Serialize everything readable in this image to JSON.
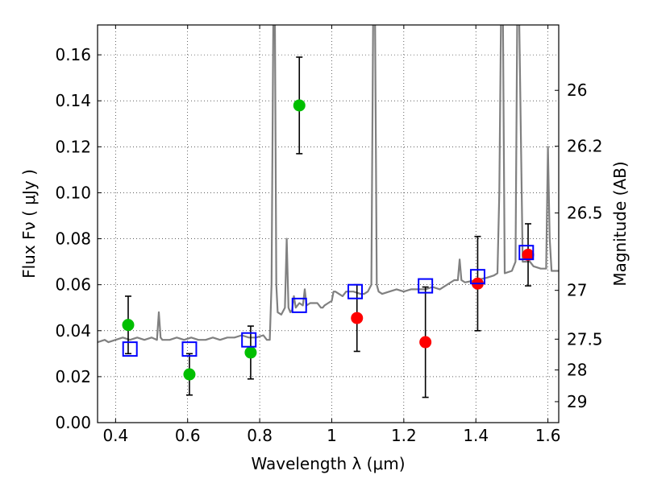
{
  "chart_data": {
    "type": "scatter",
    "xlabel": "Wavelength  λ (μm)",
    "ylabel": "Flux  Fν  ( μJy )",
    "ylabel_right": "Magnitude (AB)",
    "xlim": [
      0.35,
      1.63
    ],
    "ylim": [
      0.0,
      0.173
    ],
    "grid": true,
    "x_ticks": [
      0.4,
      0.6,
      0.8,
      1.0,
      1.2,
      1.4,
      1.6
    ],
    "x_tick_labels": [
      "0.4",
      "0.6",
      "0.8",
      "1",
      "1.2",
      "1.4",
      "1.6"
    ],
    "y_ticks": [
      0.0,
      0.02,
      0.04,
      0.06,
      0.08,
      0.1,
      0.12,
      0.14,
      0.16
    ],
    "y_tick_labels": [
      "0.00",
      "0.02",
      "0.04",
      "0.06",
      "0.08",
      "0.10",
      "0.12",
      "0.14",
      "0.16"
    ],
    "right_ticks": [
      {
        "label": "26",
        "mag": 26.0
      },
      {
        "label": "26.2",
        "mag": 26.2
      },
      {
        "label": "26.5",
        "mag": 26.5
      },
      {
        "label": "27",
        "mag": 27.0
      },
      {
        "label": "27.5",
        "mag": 27.5
      },
      {
        "label": "28",
        "mag": 28.0
      },
      {
        "label": "29",
        "mag": 29.0
      }
    ],
    "series": [
      {
        "kind": "line",
        "color": "#808080",
        "x": [
          0.35,
          0.37,
          0.38,
          0.4,
          0.42,
          0.44,
          0.46,
          0.48,
          0.5,
          0.515,
          0.52,
          0.525,
          0.53,
          0.55,
          0.57,
          0.59,
          0.61,
          0.63,
          0.65,
          0.67,
          0.69,
          0.71,
          0.73,
          0.75,
          0.77,
          0.79,
          0.81,
          0.82,
          0.828,
          0.833,
          0.838,
          0.842,
          0.846,
          0.85,
          0.86,
          0.87,
          0.875,
          0.88,
          0.885,
          0.89,
          0.895,
          0.9,
          0.91,
          0.92,
          0.925,
          0.93,
          0.94,
          0.96,
          0.97,
          0.975,
          0.98,
          0.99,
          1.0,
          1.005,
          1.01,
          1.02,
          1.03,
          1.04,
          1.06,
          1.08,
          1.09,
          1.1,
          1.11,
          1.115,
          1.12,
          1.125,
          1.13,
          1.14,
          1.16,
          1.18,
          1.2,
          1.22,
          1.24,
          1.26,
          1.28,
          1.3,
          1.32,
          1.34,
          1.35,
          1.355,
          1.36,
          1.37,
          1.4,
          1.43,
          1.45,
          1.46,
          1.465,
          1.47,
          1.475,
          1.48,
          1.5,
          1.51,
          1.515,
          1.52,
          1.53,
          1.55,
          1.56,
          1.58,
          1.595,
          1.6,
          1.605,
          1.61,
          1.615,
          1.63
        ],
        "y": [
          0.035,
          0.036,
          0.035,
          0.036,
          0.037,
          0.036,
          0.037,
          0.036,
          0.037,
          0.036,
          0.048,
          0.037,
          0.036,
          0.036,
          0.037,
          0.036,
          0.037,
          0.036,
          0.036,
          0.037,
          0.036,
          0.037,
          0.037,
          0.038,
          0.037,
          0.037,
          0.038,
          0.036,
          0.036,
          0.06,
          0.18,
          0.18,
          0.06,
          0.048,
          0.047,
          0.05,
          0.08,
          0.05,
          0.048,
          0.049,
          0.055,
          0.05,
          0.052,
          0.051,
          0.058,
          0.051,
          0.052,
          0.052,
          0.05,
          0.05,
          0.051,
          0.052,
          0.053,
          0.057,
          0.057,
          0.056,
          0.055,
          0.057,
          0.057,
          0.056,
          0.056,
          0.057,
          0.06,
          0.18,
          0.18,
          0.06,
          0.057,
          0.056,
          0.057,
          0.058,
          0.057,
          0.058,
          0.058,
          0.058,
          0.059,
          0.058,
          0.06,
          0.062,
          0.062,
          0.071,
          0.062,
          0.061,
          0.062,
          0.063,
          0.064,
          0.065,
          0.1,
          0.18,
          0.18,
          0.065,
          0.066,
          0.07,
          0.18,
          0.18,
          0.07,
          0.07,
          0.068,
          0.067,
          0.067,
          0.12,
          0.08,
          0.066,
          0.066,
          0.066
        ]
      },
      {
        "kind": "markers",
        "shape": "circle",
        "color": "#00bf00",
        "points": [
          {
            "x": 0.435,
            "y": 0.0425,
            "err": 0.0125
          },
          {
            "x": 0.605,
            "y": 0.021,
            "err": 0.009
          },
          {
            "x": 0.775,
            "y": 0.0305,
            "err": 0.0115
          },
          {
            "x": 0.91,
            "y": 0.138,
            "err": 0.021
          }
        ]
      },
      {
        "kind": "markers",
        "shape": "circle",
        "color": "#ff0000",
        "points": [
          {
            "x": 1.07,
            "y": 0.0455,
            "err": 0.0145
          },
          {
            "x": 1.26,
            "y": 0.035,
            "err": 0.024
          },
          {
            "x": 1.405,
            "y": 0.0605,
            "err": 0.0205
          },
          {
            "x": 1.545,
            "y": 0.073,
            "err": 0.0135
          }
        ]
      },
      {
        "kind": "markers",
        "shape": "open-square",
        "color": "#0000ff",
        "points": [
          {
            "x": 0.44,
            "y": 0.032
          },
          {
            "x": 0.605,
            "y": 0.032
          },
          {
            "x": 0.77,
            "y": 0.036
          },
          {
            "x": 0.91,
            "y": 0.051
          },
          {
            "x": 1.065,
            "y": 0.057
          },
          {
            "x": 1.26,
            "y": 0.0595
          },
          {
            "x": 1.405,
            "y": 0.0635
          },
          {
            "x": 1.54,
            "y": 0.074
          }
        ]
      }
    ]
  }
}
